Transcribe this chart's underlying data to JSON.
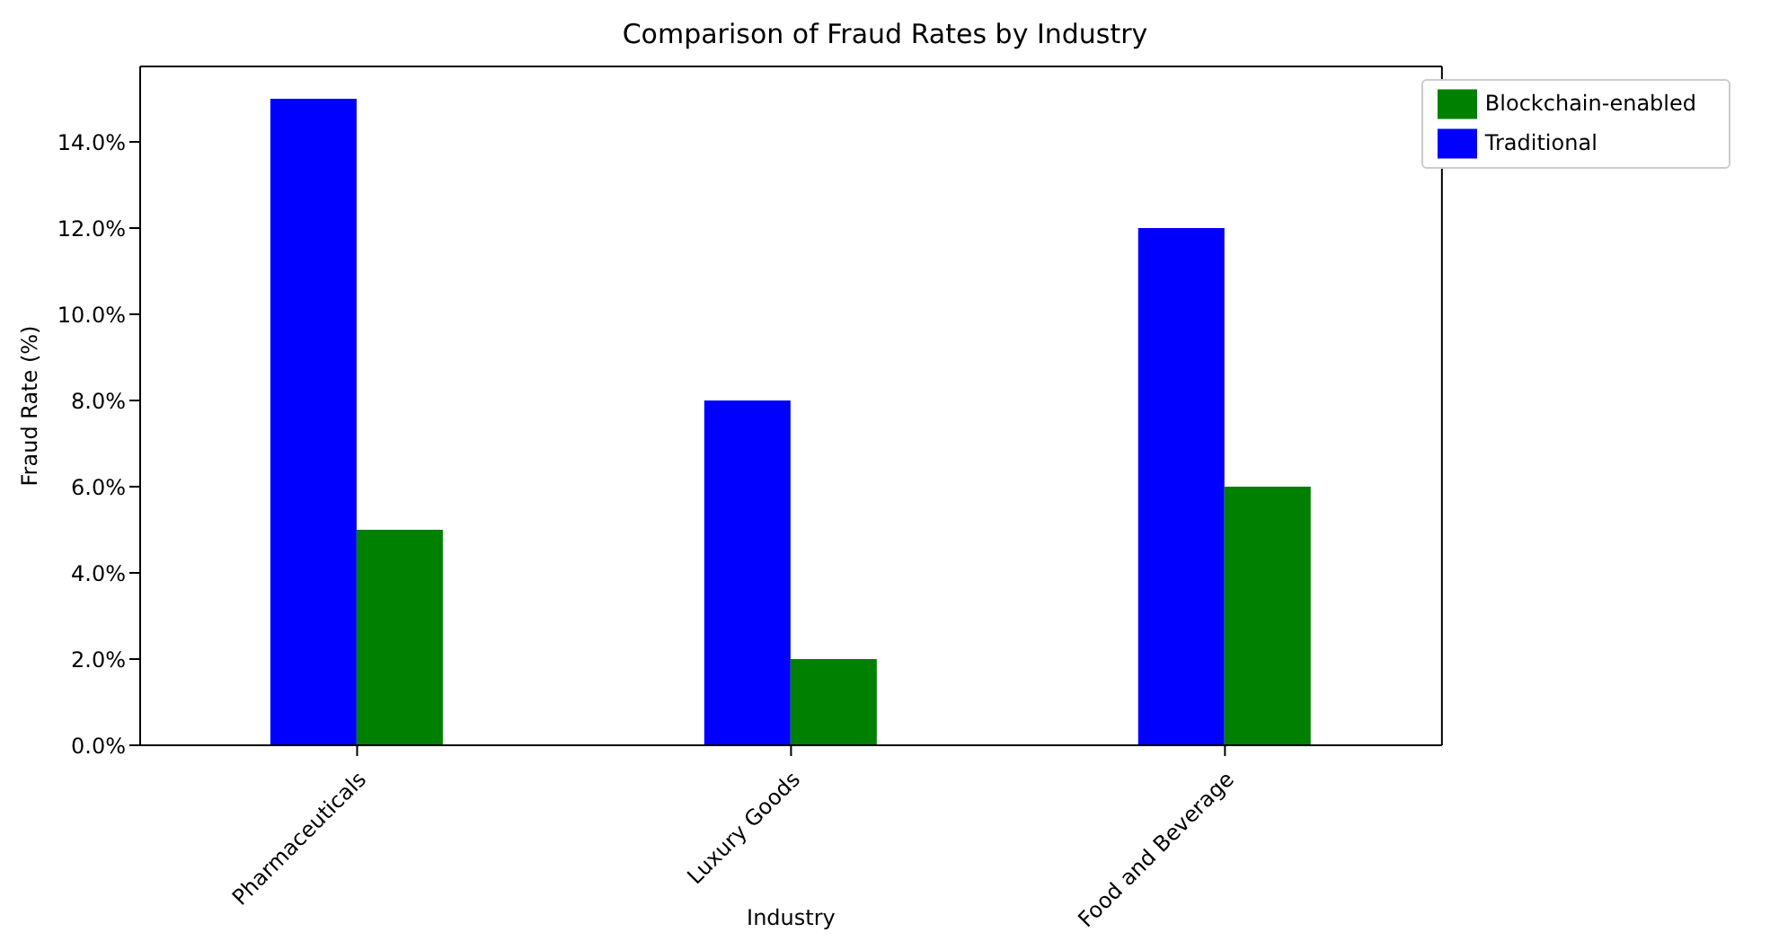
{
  "chart_data": {
    "type": "bar",
    "title": "Comparison of Fraud Rates by Industry",
    "xlabel": "Industry",
    "ylabel": "Fraud Rate (%)",
    "categories": [
      "Pharmaceuticals",
      "Luxury Goods",
      "Food and Beverage"
    ],
    "series": [
      {
        "name": "Traditional",
        "color": "#0000ff",
        "values": [
          15,
          8,
          12
        ]
      },
      {
        "name": "Blockchain-enabled",
        "color": "#008000",
        "values": [
          5,
          2,
          6
        ]
      }
    ],
    "ylim": [
      0,
      15.75
    ],
    "yticks": [
      {
        "value": 0,
        "label": "0.0%"
      },
      {
        "value": 2,
        "label": "2.0%"
      },
      {
        "value": 4,
        "label": "4.0%"
      },
      {
        "value": 6,
        "label": "6.0%"
      },
      {
        "value": 8,
        "label": "8.0%"
      },
      {
        "value": 10,
        "label": "10.0%"
      },
      {
        "value": 12,
        "label": "12.0%"
      },
      {
        "value": 14,
        "label": "14.0%"
      }
    ],
    "grid": false,
    "legend": "top right"
  }
}
